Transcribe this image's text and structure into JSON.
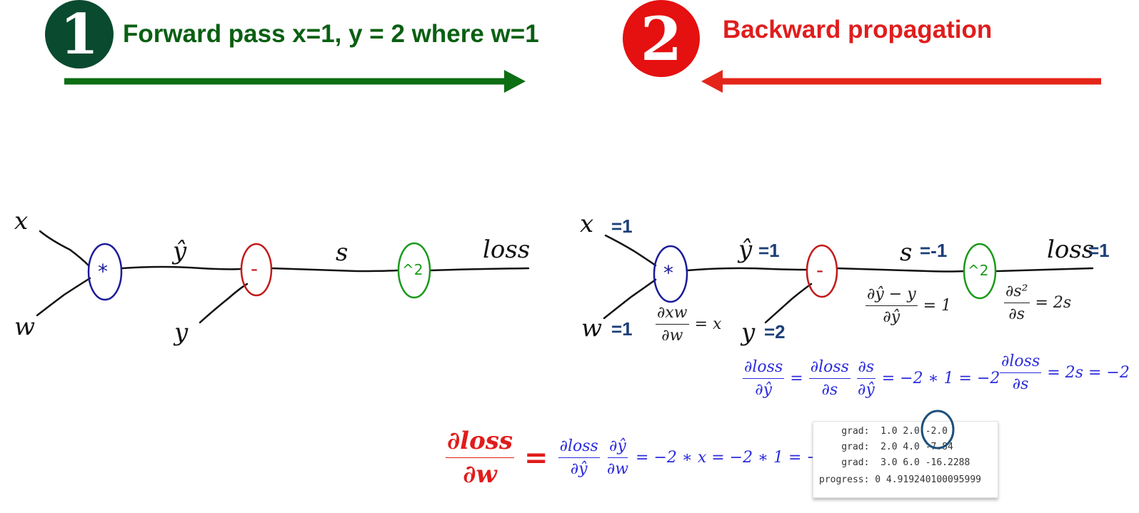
{
  "header": {
    "step1": {
      "number": "1",
      "label": "Forward pass x=1, y = 2 where w=1",
      "color": "#0a5f12",
      "badge_color": "#0a4a2e"
    },
    "step2": {
      "number": "2",
      "label": "Backward propagation",
      "color": "#e01d1d",
      "badge_color": "#e51010"
    }
  },
  "forward_graph": {
    "inputs": {
      "x": "x",
      "w": "w",
      "y": "y"
    },
    "nodes": {
      "mul": "*",
      "sub": "-",
      "square": "^2"
    },
    "edges": {
      "y_hat": "ŷ",
      "s": "s",
      "loss": "loss"
    }
  },
  "backward_graph": {
    "inputs": {
      "x": "x",
      "w": "w",
      "y": "y"
    },
    "nodes": {
      "mul": "*",
      "sub": "-",
      "square": "^2"
    },
    "edges": {
      "y_hat": "ŷ",
      "s": "s",
      "loss": "loss"
    },
    "values": {
      "x": "=1",
      "w": "=1",
      "y": "=2",
      "y_hat": "=1",
      "s": "=-1",
      "loss": "=1"
    },
    "local_gradients": {
      "mul": {
        "num": "∂xw",
        "den": "∂w",
        "rhs": "= x"
      },
      "sub": {
        "num": "∂ŷ − y",
        "den": "∂ŷ",
        "rhs": "= 1"
      },
      "square": {
        "num": "∂s²",
        "den": "∂s",
        "rhs": "= 2s"
      }
    }
  },
  "equations": {
    "dloss_ds": {
      "num": "∂loss",
      "den": "∂s",
      "rhs": "= 2s = −2"
    },
    "dloss_dyhat": {
      "lhs_num": "∂loss",
      "lhs_den": "∂ŷ",
      "eq": "=",
      "a_num": "∂loss",
      "a_den": "∂s",
      "b_num": "∂s",
      "b_den": "∂ŷ",
      "rhs": "= −2 ∗ 1 = −2"
    },
    "dloss_dw": {
      "lhs_num": "∂loss",
      "lhs_den": "∂w",
      "eq": "=",
      "a_num": "∂loss",
      "a_den": "∂ŷ",
      "b_num": "∂ŷ",
      "b_den": "∂w",
      "rhs": "= −2 ∗ x = −2 ∗ 1 = −2"
    }
  },
  "console": {
    "lines": [
      "    grad:  1.0 2.0 -2.0",
      "    grad:  2.0 4.0 -7.84",
      "    grad:  3.0 6.0 -16.2288",
      "progress: 0 4.919240100095999"
    ]
  },
  "colors": {
    "green_arrow": "#0d6e13",
    "red_arrow": "#e32619",
    "node_mul": "#1b1b9a",
    "node_sub": "#c21a1a",
    "node_square": "#1a9a1a",
    "highlight_circle": "#1d4f7a"
  }
}
